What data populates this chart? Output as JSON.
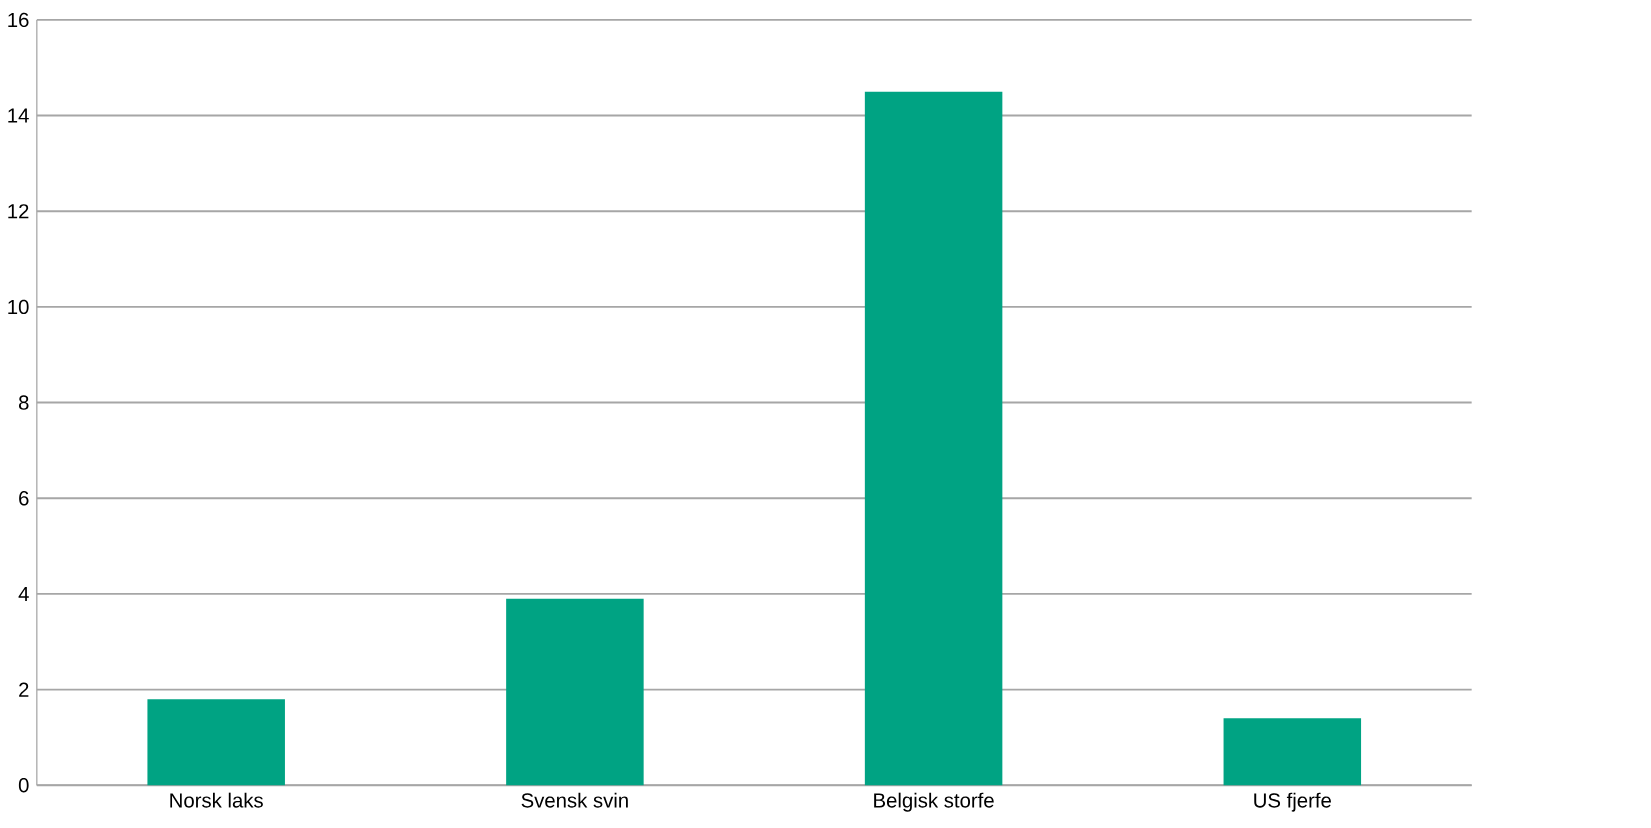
{
  "chart_data": {
    "type": "bar",
    "categories": [
      "Norsk laks",
      "Svensk svin",
      "Belgisk storfe",
      "US fjerfe"
    ],
    "values": [
      1.8,
      3.9,
      14.5,
      1.4
    ],
    "color": "#00a383",
    "ylim": [
      0,
      16
    ],
    "yticks": [
      0,
      2,
      4,
      6,
      8,
      10,
      12,
      14,
      16
    ],
    "grid": "y"
  }
}
